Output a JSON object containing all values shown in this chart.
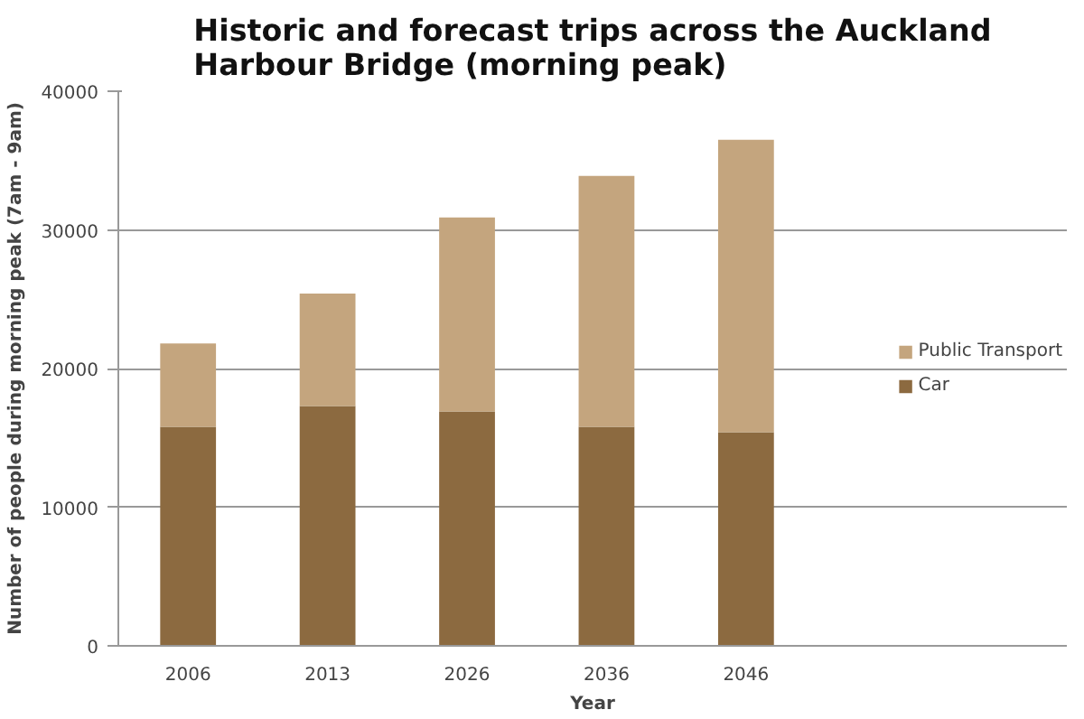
{
  "chart_data": {
    "type": "bar",
    "stacked": true,
    "title": "Historic and forecast trips across the Auckland Harbour Bridge (morning peak)",
    "xlabel": "Year",
    "ylabel": "Number of people during morning peak (7am - 9am)",
    "categories": [
      "2006",
      "2013",
      "2026",
      "2036",
      "2046"
    ],
    "series": [
      {
        "name": "Car",
        "color": "#8c6a40",
        "values": [
          15800,
          17300,
          16900,
          15800,
          15400
        ]
      },
      {
        "name": "Public Transport",
        "color": "#c4a57e",
        "values": [
          6000,
          8100,
          14000,
          18100,
          21100
        ]
      }
    ],
    "ylim": [
      0,
      40000
    ],
    "yticks": [
      0,
      10000,
      20000,
      30000,
      40000
    ],
    "grid": "y",
    "legend": "right"
  }
}
